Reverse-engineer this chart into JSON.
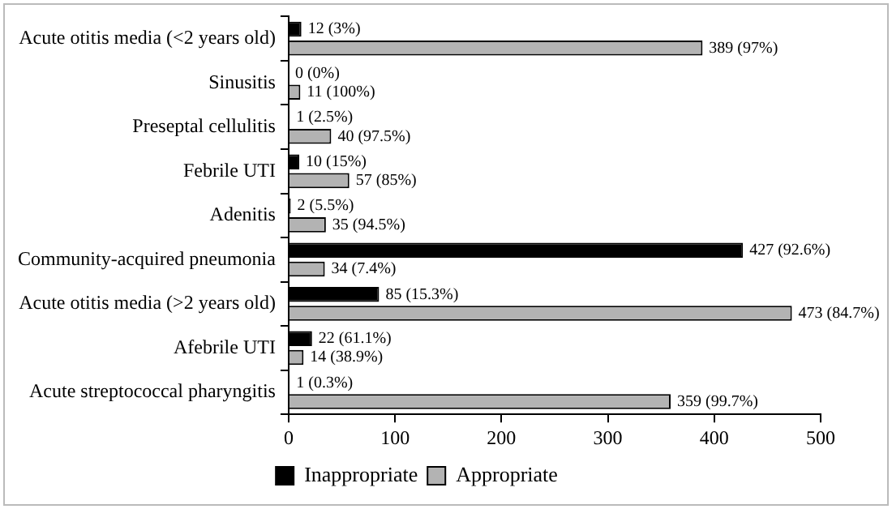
{
  "chart_data": {
    "type": "bar",
    "orientation": "horizontal",
    "categories": [
      "Acute otitis media (<2 years old)",
      "Sinusitis",
      "Preseptal cellulitis",
      "Febrile UTI",
      "Adenitis",
      "Community-acquired pneumonia",
      "Acute otitis media (>2 years old)",
      "Afebrile UTI",
      "Acute streptococcal pharyngitis"
    ],
    "series": [
      {
        "name": "Inappropriate",
        "color": "#000000",
        "values": [
          12,
          0,
          1,
          10,
          2,
          427,
          85,
          22,
          1
        ],
        "value_labels": [
          "12 (3%)",
          "0 (0%)",
          "1 (2.5%)",
          "10 (15%)",
          "2 (5.5%)",
          "427 (92.6%)",
          "85 (15.3%)",
          "22 (61.1%)",
          "1 (0.3%)"
        ]
      },
      {
        "name": "Appropriate",
        "color": "#b3b3b3",
        "values": [
          389,
          11,
          40,
          57,
          35,
          34,
          473,
          14,
          359
        ],
        "value_labels": [
          "389 (97%)",
          "11 (100%)",
          "40 (97.5%)",
          "57 (85%)",
          "35 (94.5%)",
          "34 (7.4%)",
          "473 (84.7%)",
          "14 (38.9%)",
          "359 (99.7%)"
        ]
      }
    ],
    "xlim": [
      0,
      500
    ],
    "xticks": [
      0,
      100,
      200,
      300,
      400,
      500
    ],
    "grid": false,
    "legend": "bottom"
  }
}
